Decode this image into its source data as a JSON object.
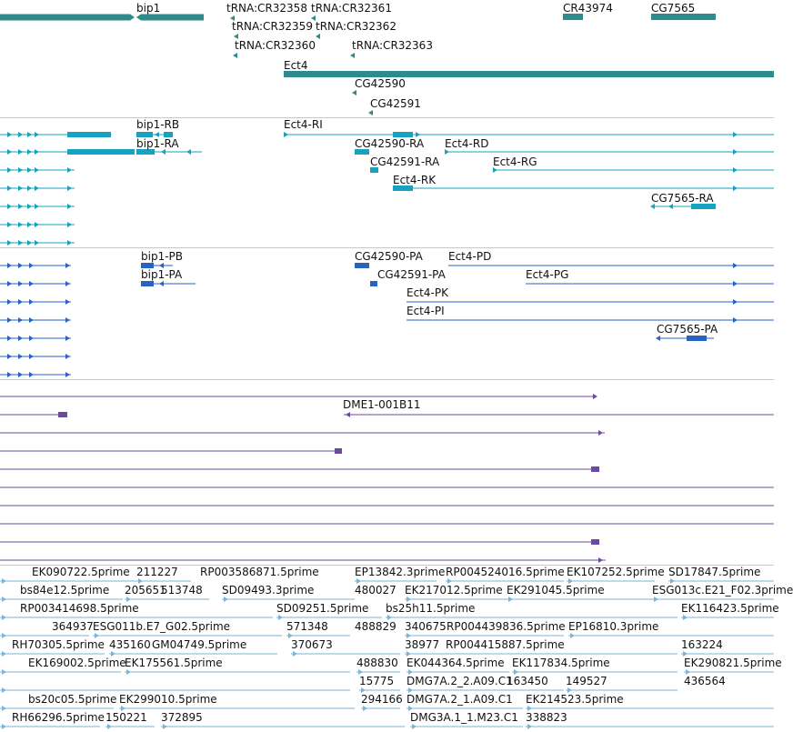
{
  "colors": {
    "gene": "#2f8b8b",
    "rna": "#17a2c0",
    "protein": "#2a62c4",
    "clone": "#6c4aa0",
    "est": "#7ab4d8",
    "separator": "#c8c8c8"
  },
  "tracks": {
    "genes": {
      "labels": [
        "bip1",
        "tRNA:CR32358",
        "tRNA:CR32361",
        "CR43974",
        "CG7565",
        "tRNA:CR32359",
        "tRNA:CR32362",
        "tRNA:CR32360",
        "tRNA:CR32363",
        "Ect4",
        "CG42590",
        "CG42591"
      ]
    },
    "transcripts": {
      "labels": [
        "bip1-RB",
        "Ect4-RI",
        "bip1-RA",
        "CG42590-RA",
        "Ect4-RD",
        "CG42591-RA",
        "Ect4-RG",
        "Ect4-RK",
        "CG7565-RA"
      ]
    },
    "proteins": {
      "labels": [
        "bip1-PB",
        "CG42590-PA",
        "Ect4-PD",
        "bip1-PA",
        "CG42591-PA",
        "Ect4-PG",
        "Ect4-PK",
        "Ect4-PI",
        "CG7565-PA"
      ]
    },
    "clones": {
      "labels": [
        "DME1-001B11"
      ]
    },
    "ests": {
      "labels": [
        "EK090722.5prime",
        "211227",
        "RP003586871.5prime",
        "EP13842.3prime",
        "RP004524016.5prime",
        "EK107252.5prime",
        "SD17847.5prime",
        "bs84e12.5prime",
        "205651",
        "513748",
        "SD09493.3prime",
        "480027",
        "EK217012.5prime",
        "EK291045.5prime",
        "ESG013c.E21_F02.3prime",
        "RP003414698.5prime",
        "SD09251.5prime",
        "bs25h11.5prime",
        "EK116423.5prime",
        "364937",
        "ESG011b.E7_G02.5prime",
        "571348",
        "488829",
        "340675",
        "RP004439836.5prime",
        "EP16810.3prime",
        "RH70305.5prime",
        "435160",
        "GM04749.5prime",
        "370673",
        "38977",
        "RP004415887.5prime",
        "163224",
        "EK169002.5prime",
        "EK175561.5prime",
        "488830",
        "EK044364.5prime",
        "EK117834.5prime",
        "EK290821.5prime",
        "15775",
        "DMG7A.2_2.A09.C1",
        "163450",
        "149527",
        "436564",
        "bs20c05.5prime",
        "EK299010.5prime",
        "294166",
        "DMG7A.2_1.A09.C1",
        "EK214523.5prime",
        "RH66296.5prime",
        "150221",
        "372895",
        "DMG3A.1_1.M23.C1",
        "338823"
      ]
    }
  }
}
